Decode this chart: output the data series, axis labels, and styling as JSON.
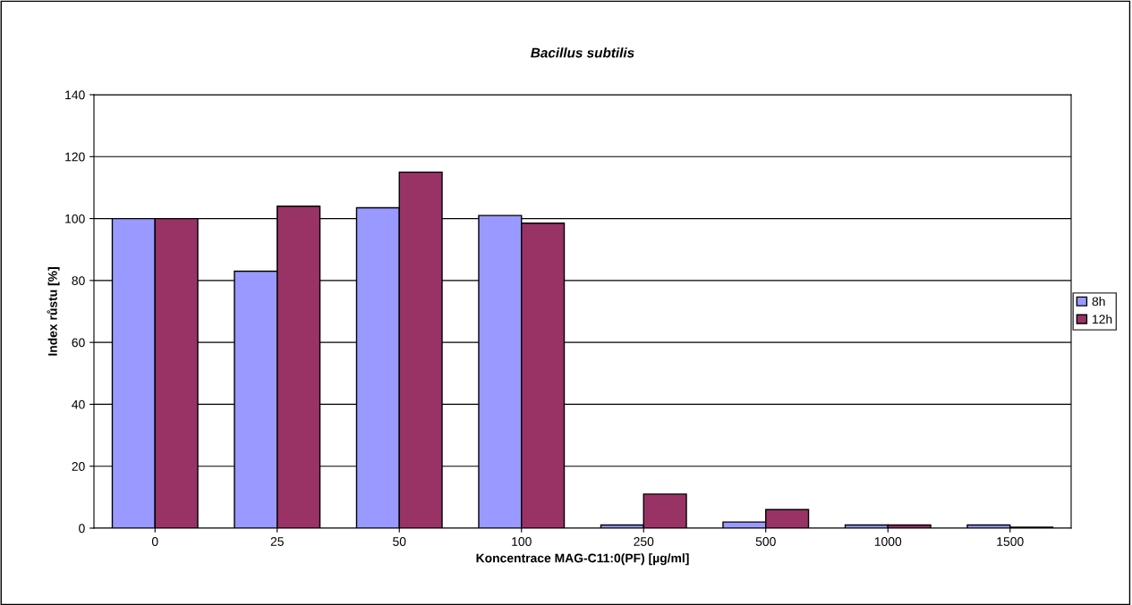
{
  "chart_data": {
    "type": "bar",
    "title": "Bacillus subtilis",
    "xlabel": "Koncentrace MAG-C11:0(PF) [µg/ml]",
    "ylabel": "Index růstu [%]",
    "categories": [
      "0",
      "25",
      "50",
      "100",
      "250",
      "500",
      "1000",
      "1500"
    ],
    "series": [
      {
        "name": "8h",
        "color": "#9999ff",
        "values": [
          100,
          83,
          103.5,
          101,
          1,
          2,
          1,
          1
        ]
      },
      {
        "name": "12h",
        "color": "#993366",
        "values": [
          100,
          104,
          115,
          98.5,
          11,
          6,
          1,
          0.3
        ]
      }
    ],
    "ylim": [
      0,
      140
    ],
    "yticks": [
      0,
      20,
      40,
      60,
      80,
      100,
      120,
      140
    ],
    "grid": "y",
    "legend": "right"
  }
}
